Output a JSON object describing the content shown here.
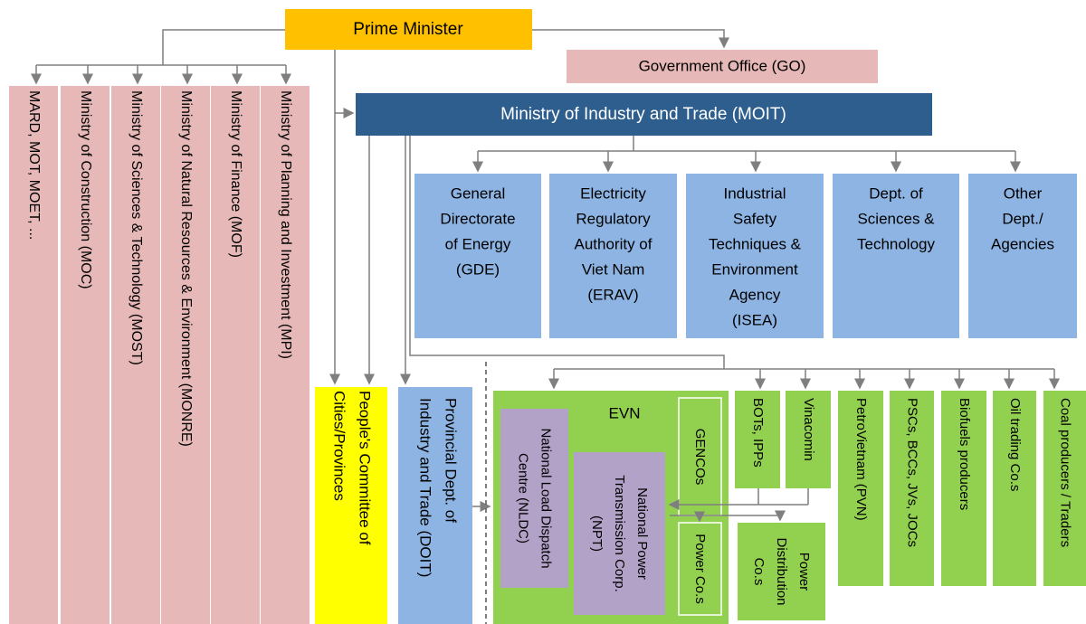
{
  "prime_minister": "Prime Minister",
  "government_office": "Government Office (GO)",
  "ministries": [
    "MARD, MOT, MOET, ...",
    "Ministry of Construction (MOC)",
    "Ministry of Sciences & Technology (MOST)",
    "Ministry of Natural Resources & Environment (MONRE)",
    "Ministry of Finance (MOF)",
    "Ministry of Planning and Investment (MPI)"
  ],
  "moit": "Ministry of Industry and Trade (MOIT)",
  "moit_agencies": [
    [
      "General",
      "Directorate",
      "of Energy",
      "(GDE)"
    ],
    [
      "Electricity",
      "Regulatory",
      "Authority of",
      "Viet Nam",
      "(ERAV)"
    ],
    [
      "Industrial",
      "Safety",
      "Techniques &",
      "Environment",
      "Agency",
      "(ISEA)"
    ],
    [
      "Dept. of",
      "Sciences &",
      "Technology"
    ],
    [
      "Other",
      "Dept./",
      "Agencies"
    ]
  ],
  "peoples_committee": [
    "People's Committee of",
    "Cities/Provinces"
  ],
  "doit": [
    "Provincial Dept. of",
    "Industry and Trade (DOIT)"
  ],
  "evn": {
    "title": "EVN",
    "nldc": [
      "National Load Dispatch",
      "Centre (NLDC)"
    ],
    "npt": [
      "National Power",
      "Transmission Corp.",
      "(NPT)"
    ],
    "gencos": "GENCOs",
    "power_cos": "Power Co.s"
  },
  "power_distribution": [
    "Power",
    "Distribution",
    "Co.s"
  ],
  "market_actors": [
    "BOTs, IPPs",
    "Vinacomin",
    "PetroVietnam (PVN)",
    "PSCs, BCCs, JVs, JOCs",
    "Biofuels producers",
    "Oil trading Co.s",
    "Coal producers / Traders"
  ]
}
